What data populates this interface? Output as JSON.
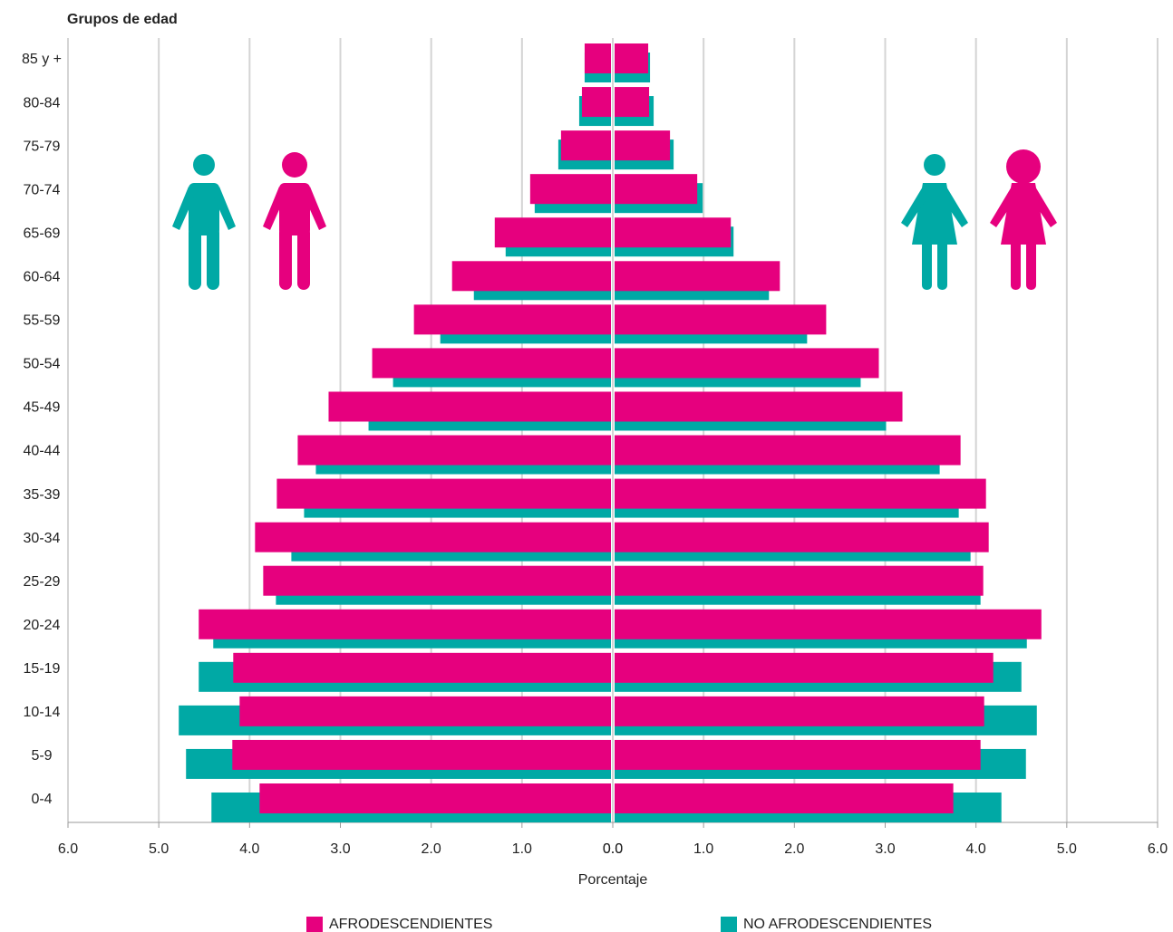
{
  "chart_data": {
    "type": "pyramid",
    "y_label": "Grupos de edad",
    "x_label": "Porcentaje",
    "categories": [
      "85 y +",
      "80-84",
      "75-79",
      "70-74",
      "65-69",
      "60-64",
      "55-59",
      "50-54",
      "45-49",
      "40-44",
      "35-39",
      "30-34",
      "25-29",
      "20-24",
      "15-19",
      "10-14",
      "5-9",
      "0-4"
    ],
    "series": [
      {
        "name": "AFRODESCENDIENTES",
        "color": "#e6007e",
        "left": [
          0.31,
          0.34,
          0.57,
          0.91,
          1.3,
          1.77,
          2.19,
          2.65,
          3.13,
          3.47,
          3.7,
          3.94,
          3.85,
          4.56,
          4.18,
          4.11,
          4.19,
          3.89
        ],
        "right": [
          0.39,
          0.4,
          0.63,
          0.93,
          1.3,
          1.84,
          2.35,
          2.93,
          3.19,
          3.83,
          4.11,
          4.14,
          4.08,
          4.72,
          4.19,
          4.09,
          4.05,
          3.75
        ]
      },
      {
        "name": "NO AFRODESCENDIENTES",
        "color": "#00a9a5",
        "left": [
          0.31,
          0.37,
          0.6,
          0.86,
          1.18,
          1.53,
          1.9,
          2.42,
          2.69,
          3.27,
          3.4,
          3.54,
          3.71,
          4.4,
          4.56,
          4.78,
          4.7,
          4.42
        ],
        "right": [
          0.41,
          0.45,
          0.67,
          0.99,
          1.33,
          1.72,
          2.14,
          2.73,
          3.01,
          3.6,
          3.81,
          3.94,
          4.05,
          4.56,
          4.5,
          4.67,
          4.55,
          4.28
        ]
      }
    ],
    "xlim": [
      0,
      6
    ],
    "xticks": [
      {
        "value": 0,
        "label": "0.0"
      },
      {
        "value": 1,
        "label": "1.0"
      },
      {
        "value": 2,
        "label": "2.0"
      },
      {
        "value": 3,
        "label": "3.0"
      },
      {
        "value": 4,
        "label": "4.0"
      },
      {
        "value": 5,
        "label": "5.0"
      },
      {
        "value": 6,
        "label": "6.0"
      }
    ],
    "grid": true,
    "legend": "bottom"
  }
}
